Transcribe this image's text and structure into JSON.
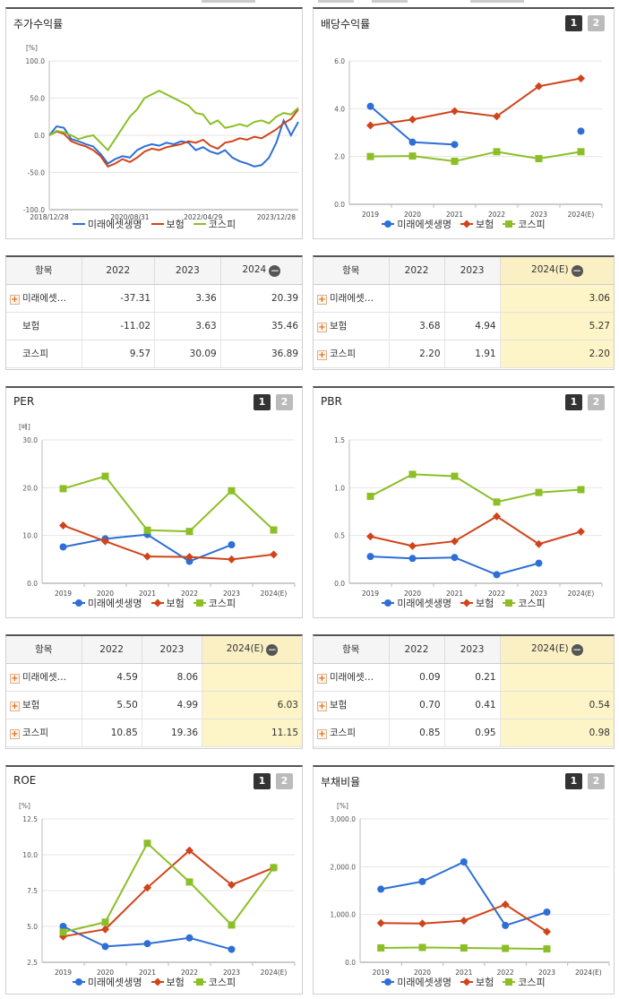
{
  "colors": {
    "s1": "#2d6fd6",
    "s2": "#d0441b",
    "s3": "#8cbf26"
  },
  "legend_labels": [
    "미래에셋생명",
    "보험",
    "코스피"
  ],
  "pages": [
    "1",
    "2"
  ],
  "panels": {
    "stock": {
      "title": "주가수익률",
      "table": {
        "headers": [
          "항목",
          "2022",
          "2023",
          "2024"
        ],
        "rows": [
          {
            "name": "미래에셋…",
            "plus": true,
            "values": [
              "-37.31",
              "3.36",
              "20.39"
            ]
          },
          {
            "name": "보험",
            "plus": false,
            "values": [
              "-11.02",
              "3.63",
              "35.46"
            ]
          },
          {
            "name": "코스피",
            "plus": false,
            "values": [
              "9.57",
              "30.09",
              "36.89"
            ]
          }
        ]
      }
    },
    "dividend": {
      "title": "배당수익률",
      "table": {
        "headers": [
          "항목",
          "2022",
          "2023",
          "2024(E)"
        ],
        "rows": [
          {
            "name": "미래에셋…",
            "plus": true,
            "values": [
              "",
              "",
              "3.06"
            ]
          },
          {
            "name": "보험",
            "plus": true,
            "values": [
              "3.68",
              "4.94",
              "5.27"
            ]
          },
          {
            "name": "코스피",
            "plus": true,
            "values": [
              "2.20",
              "1.91",
              "2.20"
            ]
          }
        ]
      }
    },
    "per": {
      "title": "PER",
      "table": {
        "headers": [
          "항목",
          "2022",
          "2023",
          "2024(E)"
        ],
        "rows": [
          {
            "name": "미래에셋…",
            "plus": true,
            "values": [
              "4.59",
              "8.06",
              ""
            ]
          },
          {
            "name": "보험",
            "plus": true,
            "values": [
              "5.50",
              "4.99",
              "6.03"
            ]
          },
          {
            "name": "코스피",
            "plus": true,
            "values": [
              "10.85",
              "19.36",
              "11.15"
            ]
          }
        ]
      }
    },
    "pbr": {
      "title": "PBR",
      "table": {
        "headers": [
          "항목",
          "2022",
          "2023",
          "2024(E)"
        ],
        "rows": [
          {
            "name": "미래에셋…",
            "plus": true,
            "values": [
              "0.09",
              "0.21",
              ""
            ]
          },
          {
            "name": "보험",
            "plus": true,
            "values": [
              "0.70",
              "0.41",
              "0.54"
            ]
          },
          {
            "name": "코스피",
            "plus": true,
            "values": [
              "0.85",
              "0.95",
              "0.98"
            ]
          }
        ]
      }
    },
    "roe": {
      "title": "ROE"
    },
    "debt": {
      "title": "부채비율"
    }
  },
  "chart_data": [
    {
      "id": "stock",
      "type": "line",
      "unit": "[%]",
      "ylim": [
        -100,
        100
      ],
      "yticks": [
        -100,
        -50,
        0,
        50,
        100
      ],
      "ytick_labels": [
        "-100.0",
        "-50.0",
        "0.0",
        "50.0",
        "100.0"
      ],
      "xtick_labels": [
        "2018/12/28",
        "2020/08/31",
        "2022/04/29",
        "2023/12/28"
      ],
      "x": [
        "2018/12/28",
        "2019/02",
        "2019/04",
        "2019/06",
        "2019/08",
        "2019/10",
        "2019/12",
        "2020/02",
        "2020/03",
        "2020/05",
        "2020/07",
        "2020/08/31",
        "2020/10",
        "2020/12",
        "2021/02",
        "2021/04",
        "2021/06",
        "2021/08",
        "2021/10",
        "2021/12",
        "2022/02",
        "2022/04/29",
        "2022/06",
        "2022/08",
        "2022/10",
        "2022/12",
        "2023/02",
        "2023/04",
        "2023/06",
        "2023/08",
        "2023/10",
        "2023/12/28",
        "2024/02",
        "2024/04",
        "2024/06"
      ],
      "series": [
        {
          "name": "미래에셋생명",
          "values": [
            0,
            12,
            10,
            -5,
            -8,
            -12,
            -15,
            -25,
            -38,
            -32,
            -28,
            -30,
            -20,
            -15,
            -12,
            -14,
            -10,
            -12,
            -8,
            -10,
            -20,
            -16,
            -22,
            -25,
            -20,
            -30,
            -35,
            -38,
            -42,
            -40,
            -30,
            -10,
            20,
            0,
            18
          ]
        },
        {
          "name": "보험",
          "values": [
            0,
            5,
            2,
            -8,
            -12,
            -15,
            -20,
            -28,
            -42,
            -38,
            -32,
            -36,
            -30,
            -22,
            -18,
            -20,
            -16,
            -14,
            -12,
            -8,
            -10,
            -6,
            -14,
            -18,
            -10,
            -8,
            -4,
            -6,
            -2,
            -4,
            2,
            8,
            16,
            22,
            35
          ]
        },
        {
          "name": "코스피",
          "values": [
            0,
            6,
            4,
            0,
            -5,
            -2,
            0,
            -10,
            -20,
            -5,
            10,
            25,
            35,
            50,
            55,
            60,
            55,
            50,
            45,
            40,
            30,
            28,
            15,
            20,
            10,
            12,
            15,
            12,
            18,
            20,
            16,
            25,
            30,
            28,
            37
          ]
        }
      ]
    },
    {
      "id": "dividend",
      "type": "line",
      "unit": "",
      "ylim": [
        0,
        6
      ],
      "yticks": [
        0,
        2,
        4,
        6
      ],
      "ytick_labels": [
        "0.0",
        "2.0",
        "4.0",
        "6.0"
      ],
      "categories": [
        "2019",
        "2020",
        "2021",
        "2022",
        "2023",
        "2024(E)"
      ],
      "series": [
        {
          "name": "미래에셋생명",
          "values": [
            4.1,
            2.6,
            2.5,
            null,
            null,
            3.06
          ]
        },
        {
          "name": "보험",
          "values": [
            3.3,
            3.55,
            3.9,
            3.68,
            4.94,
            5.27
          ]
        },
        {
          "name": "코스피",
          "values": [
            2.0,
            2.02,
            1.8,
            2.2,
            1.91,
            2.2
          ]
        }
      ]
    },
    {
      "id": "per",
      "type": "line",
      "unit": "[배]",
      "ylim": [
        0,
        30
      ],
      "yticks": [
        0,
        10,
        20,
        30
      ],
      "ytick_labels": [
        "0.0",
        "10.0",
        "20.0",
        "30.0"
      ],
      "categories": [
        "2019",
        "2020",
        "2021",
        "2022",
        "2023",
        "2024(E)"
      ],
      "series": [
        {
          "name": "미래에셋생명",
          "values": [
            7.6,
            9.3,
            10.2,
            4.59,
            8.06,
            null
          ]
        },
        {
          "name": "보험",
          "values": [
            12.1,
            8.8,
            5.6,
            5.5,
            4.99,
            6.03
          ]
        },
        {
          "name": "코스피",
          "values": [
            19.8,
            22.4,
            11.1,
            10.85,
            19.36,
            11.15
          ]
        }
      ]
    },
    {
      "id": "pbr",
      "type": "line",
      "unit": "",
      "ylim": [
        0,
        1.5
      ],
      "yticks": [
        0,
        0.5,
        1.0,
        1.5
      ],
      "ytick_labels": [
        "0.0",
        "0.5",
        "1.0",
        "1.5"
      ],
      "categories": [
        "2019",
        "2020",
        "2021",
        "2022",
        "2023",
        "2024(E)"
      ],
      "series": [
        {
          "name": "미래에셋생명",
          "values": [
            0.28,
            0.26,
            0.27,
            0.09,
            0.21,
            null
          ]
        },
        {
          "name": "보험",
          "values": [
            0.49,
            0.39,
            0.44,
            0.7,
            0.41,
            0.54
          ]
        },
        {
          "name": "코스피",
          "values": [
            0.91,
            1.14,
            1.12,
            0.85,
            0.95,
            0.98
          ]
        }
      ]
    },
    {
      "id": "roe",
      "type": "line",
      "unit": "[%]",
      "ylim": [
        2.5,
        12.5
      ],
      "yticks": [
        2.5,
        5.0,
        7.5,
        10.0,
        12.5
      ],
      "ytick_labels": [
        "2.5",
        "5.0",
        "7.5",
        "10.0",
        "12.5"
      ],
      "categories": [
        "2019",
        "2020",
        "2021",
        "2022",
        "2023",
        "2024(E)"
      ],
      "series": [
        {
          "name": "미래에셋생명",
          "values": [
            5.0,
            3.6,
            3.8,
            4.2,
            3.4,
            null
          ]
        },
        {
          "name": "보험",
          "values": [
            4.3,
            4.8,
            7.7,
            10.3,
            7.9,
            9.1
          ]
        },
        {
          "name": "코스피",
          "values": [
            4.6,
            5.3,
            10.8,
            8.1,
            5.1,
            9.1
          ]
        }
      ]
    },
    {
      "id": "debt",
      "type": "line",
      "unit": "[%]",
      "ylim": [
        0,
        3000
      ],
      "yticks": [
        0,
        1000,
        2000,
        3000
      ],
      "ytick_labels": [
        "0.0",
        "1,000.0",
        "2,000.0",
        "3,000.0"
      ],
      "categories": [
        "2019",
        "2020",
        "2021",
        "2022",
        "2023",
        "2024(E)"
      ],
      "series": [
        {
          "name": "미래에셋생명",
          "values": [
            1530,
            1690,
            2100,
            770,
            1050,
            null
          ]
        },
        {
          "name": "보험",
          "values": [
            820,
            810,
            870,
            1210,
            640,
            null
          ]
        },
        {
          "name": "코스피",
          "values": [
            300,
            310,
            300,
            290,
            280,
            null
          ]
        }
      ]
    }
  ]
}
